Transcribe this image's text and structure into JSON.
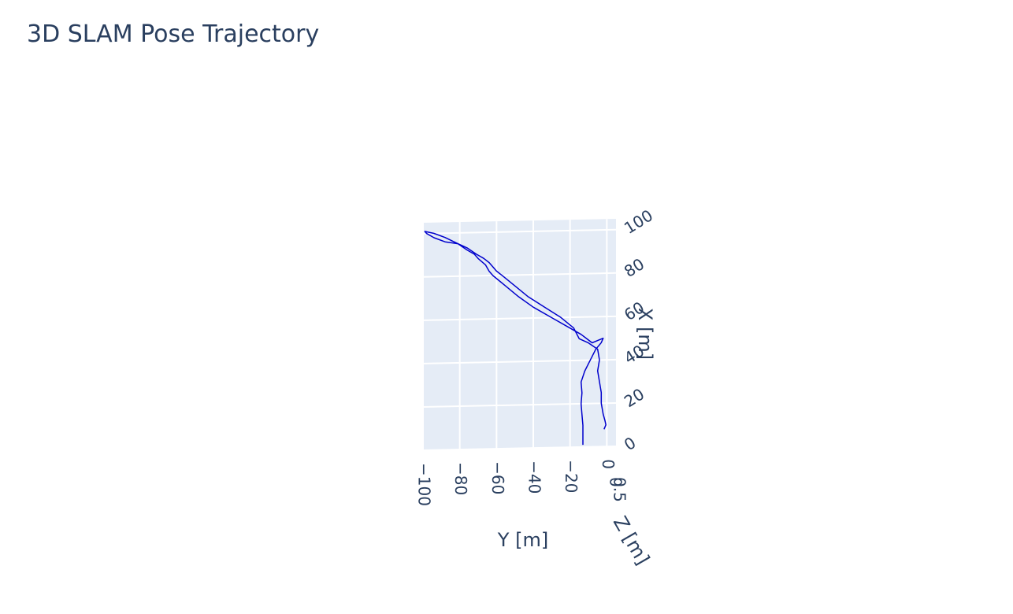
{
  "chart_data": {
    "type": "line",
    "title": "3D SLAM Pose Trajectory",
    "scene": {
      "background": "#e5ecf6",
      "grid": true,
      "gridcolor": "#ffffff",
      "tickcolor": "#2a3f5f"
    },
    "axes": {
      "x": {
        "label": "X [m]",
        "range": [
          0,
          105
        ],
        "ticks": [
          0,
          20,
          40,
          60,
          80,
          100
        ],
        "tick_labels": [
          "0",
          "20",
          "40",
          "60",
          "80",
          "100"
        ]
      },
      "y": {
        "label": "Y [m]",
        "range": [
          -100,
          5
        ],
        "ticks": [
          -100,
          -80,
          -60,
          -40,
          -20,
          0
        ],
        "tick_labels": [
          "−100",
          "−80",
          "−60",
          "−40",
          "−20",
          "0"
        ]
      },
      "z": {
        "label": "Z [m]",
        "tick_labels": [
          "0",
          "0.5"
        ]
      }
    },
    "series": [
      {
        "color": "#0000cc",
        "x": [
          1,
          5,
          10,
          15,
          20,
          25,
          30,
          35,
          40,
          45,
          48,
          50,
          49,
          48,
          50,
          52,
          55,
          60,
          65,
          70,
          75,
          80,
          82,
          85,
          88,
          90,
          92,
          95,
          98,
          100,
          101,
          100,
          98,
          96,
          95,
          93,
          90,
          88,
          86,
          84,
          82,
          80,
          75,
          70,
          65,
          60,
          55,
          50,
          48,
          45,
          40,
          35,
          30,
          25,
          20,
          15,
          12,
          10,
          8
        ],
        "y": [
          -13,
          -13,
          -13,
          -13.5,
          -14,
          -13.5,
          -14,
          -12,
          -9,
          -6,
          -3,
          -2,
          -5,
          -8,
          -11,
          -14,
          -20,
          -30,
          -40,
          -48,
          -55,
          -62,
          -64,
          -66,
          -70,
          -72,
          -76,
          -81,
          -88,
          -94,
          -99,
          -98,
          -94,
          -88,
          -81,
          -76,
          -71,
          -67,
          -64,
          -62,
          -60,
          -57,
          -50,
          -43,
          -34,
          -25,
          -18,
          -15,
          -10,
          -5,
          -4,
          -5,
          -4,
          -3,
          -3,
          -2,
          -1,
          -0.5,
          -1.5
        ]
      }
    ]
  }
}
